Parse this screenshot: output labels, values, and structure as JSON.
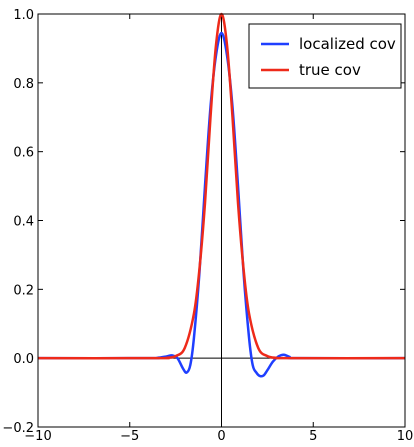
{
  "chart_data": {
    "type": "line",
    "title": "",
    "xlabel": "",
    "ylabel": "",
    "xlim": [
      -10,
      10
    ],
    "ylim": [
      -0.2,
      1.0
    ],
    "x_ticks": [
      -10,
      -5,
      0,
      5,
      10
    ],
    "x_tick_labels": [
      "−10",
      "−5",
      "0",
      "5",
      "10"
    ],
    "y_ticks": [
      -0.2,
      0.0,
      0.2,
      0.4,
      0.6,
      0.8,
      1.0
    ],
    "y_tick_labels": [
      "−0.2",
      "0.0",
      "0.2",
      "0.4",
      "0.6",
      "0.8",
      "1.0"
    ],
    "grid": false,
    "legend_position": "top-right",
    "reference_lines": {
      "horizontal_y": 0,
      "vertical_x": 0
    },
    "series": [
      {
        "name": "localized cov",
        "color": "#1f3fff",
        "x": [
          -10,
          -4,
          -3.5,
          -3,
          -2.7,
          -2.4,
          -2.1,
          -1.9,
          -1.7,
          -1.5,
          -1.2,
          -0.9,
          -0.6,
          -0.3,
          0,
          0.3,
          0.6,
          0.9,
          1.2,
          1.5,
          1.7,
          1.9,
          2.1,
          2.3,
          2.5,
          2.8,
          3.1,
          3.4,
          3.7,
          4.2,
          10
        ],
        "y": [
          0,
          0,
          0.001,
          0.005,
          0.008,
          0.0,
          -0.03,
          -0.042,
          -0.02,
          0.06,
          0.25,
          0.5,
          0.73,
          0.88,
          0.945,
          0.88,
          0.73,
          0.5,
          0.25,
          0.06,
          -0.02,
          -0.042,
          -0.052,
          -0.05,
          -0.035,
          -0.01,
          0.005,
          0.01,
          0.004,
          0,
          0
        ]
      },
      {
        "name": "true cov",
        "color": "#ee2a1a",
        "x": [
          -10,
          -3.5,
          -3,
          -2.5,
          -2,
          -1.5,
          -1.2,
          -0.9,
          -0.6,
          -0.3,
          0,
          0.3,
          0.6,
          0.9,
          1.2,
          1.5,
          2,
          2.5,
          3,
          3.5,
          10
        ],
        "y": [
          0,
          0,
          0.001,
          0.006,
          0.03,
          0.13,
          0.26,
          0.45,
          0.7,
          0.91,
          1.0,
          0.91,
          0.7,
          0.45,
          0.26,
          0.13,
          0.03,
          0.006,
          0.001,
          0,
          0
        ]
      }
    ]
  }
}
